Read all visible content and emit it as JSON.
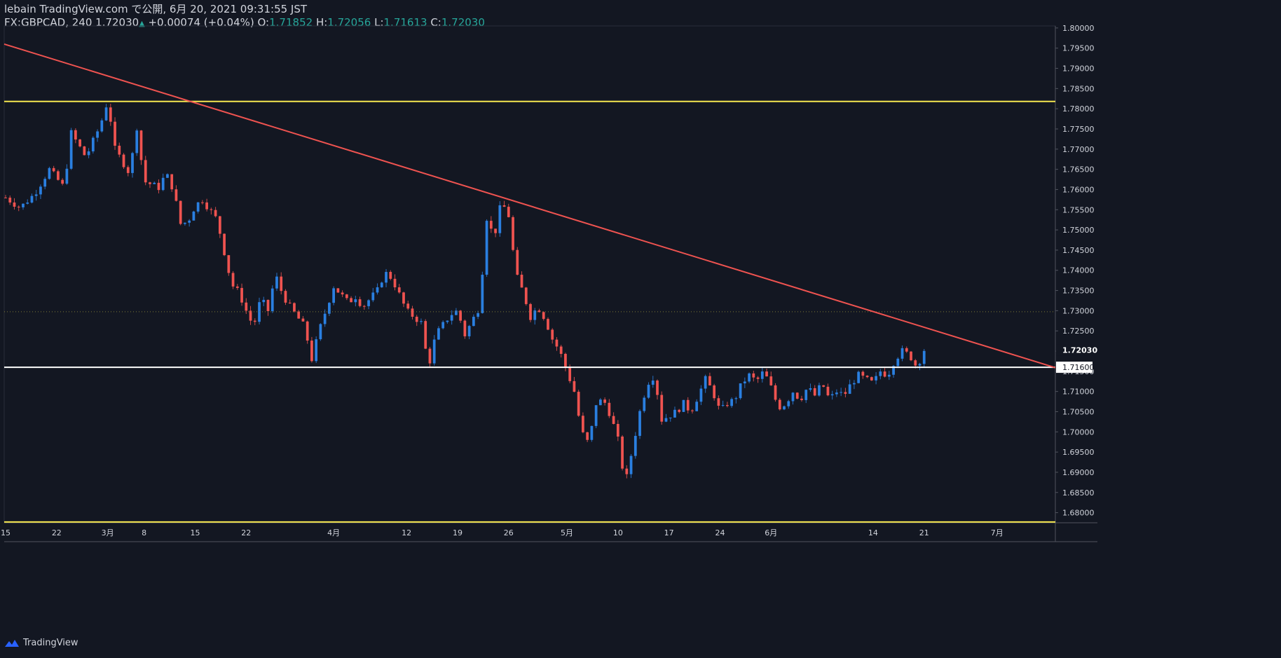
{
  "header": {
    "line1": "lebain TradingView.com で公開, 6月 20, 2021 09:31:55 JST",
    "symbol": "FX:GBPCAD, 240",
    "last": "1.72030",
    "change": "+0.00074 (+0.04%)",
    "o_label": "O:",
    "o": "1.71852",
    "h_label": "H:",
    "h": "1.72056",
    "l_label": "L:",
    "l": "1.71613",
    "c_label": "C:",
    "c": "1.72030"
  },
  "footer": {
    "brand": "TradingView"
  },
  "colors": {
    "background": "#131722",
    "up": "#2a7fe0",
    "down": "#ef5350",
    "support_yellow": "#f5e74f",
    "trendline": "#ef5350",
    "white_line": "#ffffff",
    "dotted": "#7f7a36",
    "axis_text": "#d1d4dc"
  },
  "chart_data": {
    "type": "candlestick",
    "symbol": "FX:GBPCAD",
    "interval": "240",
    "y_axis": {
      "min": 1.6775,
      "max": 1.8005,
      "ticks": [
        "1.68000",
        "1.68500",
        "1.69000",
        "1.69500",
        "1.70000",
        "1.70500",
        "1.71000",
        "1.71500",
        "1.72000",
        "1.72500",
        "1.73000",
        "1.73500",
        "1.74000",
        "1.74500",
        "1.75000",
        "1.75500",
        "1.76000",
        "1.76500",
        "1.77000",
        "1.77500",
        "1.78000",
        "1.78500",
        "1.79000",
        "1.79500",
        "1.80000"
      ],
      "last_price_label": "1.72030",
      "line_price_label": "1.71600"
    },
    "x_axis": {
      "labels": [
        "15",
        "22",
        "3月",
        "8",
        "15",
        "22",
        "4月",
        "12",
        "19",
        "26",
        "5月",
        "10",
        "17",
        "24",
        "6月",
        "14",
        "21",
        "7月"
      ],
      "label_positions": [
        0,
        7,
        14,
        19,
        26,
        33,
        45,
        55,
        62,
        69,
        77,
        84,
        91,
        98,
        105,
        119,
        126,
        136
      ],
      "total_days": 144
    },
    "path_points": [
      [
        0,
        1.758
      ],
      [
        2,
        1.7555
      ],
      [
        4,
        1.759
      ],
      [
        6,
        1.765
      ],
      [
        8,
        1.7605
      ],
      [
        9,
        1.774
      ],
      [
        11,
        1.768
      ],
      [
        13,
        1.776
      ],
      [
        14,
        1.782
      ],
      [
        15,
        1.77
      ],
      [
        16,
        1.767
      ],
      [
        17,
        1.764
      ],
      [
        18,
        1.7755
      ],
      [
        19,
        1.762
      ],
      [
        21,
        1.7605
      ],
      [
        22,
        1.764
      ],
      [
        23,
        1.76
      ],
      [
        24,
        1.7515
      ],
      [
        25,
        1.752
      ],
      [
        26,
        1.756
      ],
      [
        27,
        1.7575
      ],
      [
        29,
        1.7525
      ],
      [
        31,
        1.7365
      ],
      [
        32,
        1.7345
      ],
      [
        33,
        1.73
      ],
      [
        34,
        1.726
      ],
      [
        35,
        1.733
      ],
      [
        36,
        1.73
      ],
      [
        37,
        1.739
      ],
      [
        38,
        1.734
      ],
      [
        39,
        1.731
      ],
      [
        41,
        1.726
      ],
      [
        42,
        1.718
      ],
      [
        43,
        1.725
      ],
      [
        45,
        1.736
      ],
      [
        46,
        1.734
      ],
      [
        47,
        1.732
      ],
      [
        48,
        1.7335
      ],
      [
        49,
        1.731
      ],
      [
        51,
        1.735
      ],
      [
        52,
        1.7395
      ],
      [
        53,
        1.738
      ],
      [
        55,
        1.73
      ],
      [
        57,
        1.727
      ],
      [
        58,
        1.716
      ],
      [
        59,
        1.724
      ],
      [
        61,
        1.729
      ],
      [
        62,
        1.73
      ],
      [
        63,
        1.724
      ],
      [
        65,
        1.731
      ],
      [
        66,
        1.753
      ],
      [
        67,
        1.748
      ],
      [
        68,
        1.757
      ],
      [
        69,
        1.7535
      ],
      [
        70,
        1.739
      ],
      [
        71,
        1.7345
      ],
      [
        72,
        1.7285
      ],
      [
        73,
        1.731
      ],
      [
        74,
        1.728
      ],
      [
        75,
        1.723
      ],
      [
        76,
        1.72
      ],
      [
        77,
        1.715
      ],
      [
        78,
        1.71
      ],
      [
        79,
        1.7
      ],
      [
        80,
        1.697
      ],
      [
        81,
        1.707
      ],
      [
        82,
        1.708
      ],
      [
        83,
        1.704
      ],
      [
        84,
        1.698
      ],
      [
        85,
        1.687
      ],
      [
        86,
        1.696
      ],
      [
        87,
        1.705
      ],
      [
        88,
        1.712
      ],
      [
        89,
        1.714
      ],
      [
        90,
        1.703
      ],
      [
        91,
        1.704
      ],
      [
        92,
        1.705
      ],
      [
        93,
        1.707
      ],
      [
        94,
        1.705
      ],
      [
        95,
        1.709
      ],
      [
        96,
        1.713
      ],
      [
        97,
        1.71
      ],
      [
        98,
        1.705
      ],
      [
        99,
        1.707
      ],
      [
        100,
        1.708
      ],
      [
        101,
        1.712
      ],
      [
        102,
        1.714
      ],
      [
        103,
        1.7125
      ],
      [
        104,
        1.715
      ],
      [
        105,
        1.711
      ],
      [
        106,
        1.706
      ],
      [
        107,
        1.707
      ],
      [
        108,
        1.71
      ],
      [
        109,
        1.708
      ],
      [
        110,
        1.711
      ],
      [
        111,
        1.709
      ],
      [
        112,
        1.712
      ],
      [
        113,
        1.708
      ],
      [
        114,
        1.71
      ],
      [
        115,
        1.709
      ],
      [
        116,
        1.712
      ],
      [
        117,
        1.714
      ],
      [
        118,
        1.713
      ],
      [
        119,
        1.712
      ],
      [
        120,
        1.715
      ],
      [
        121,
        1.714
      ],
      [
        122,
        1.718
      ],
      [
        123,
        1.72
      ],
      [
        124,
        1.719
      ],
      [
        125,
        1.716
      ],
      [
        126,
        1.7203
      ]
    ],
    "annotations": {
      "trendline": {
        "from": [
          0,
          1.796
        ],
        "to": [
          144,
          1.7159
        ]
      },
      "upper_support": 1.7818,
      "lower_support": 1.6777,
      "white_line": 1.716,
      "dotted_line": 1.72975
    }
  }
}
